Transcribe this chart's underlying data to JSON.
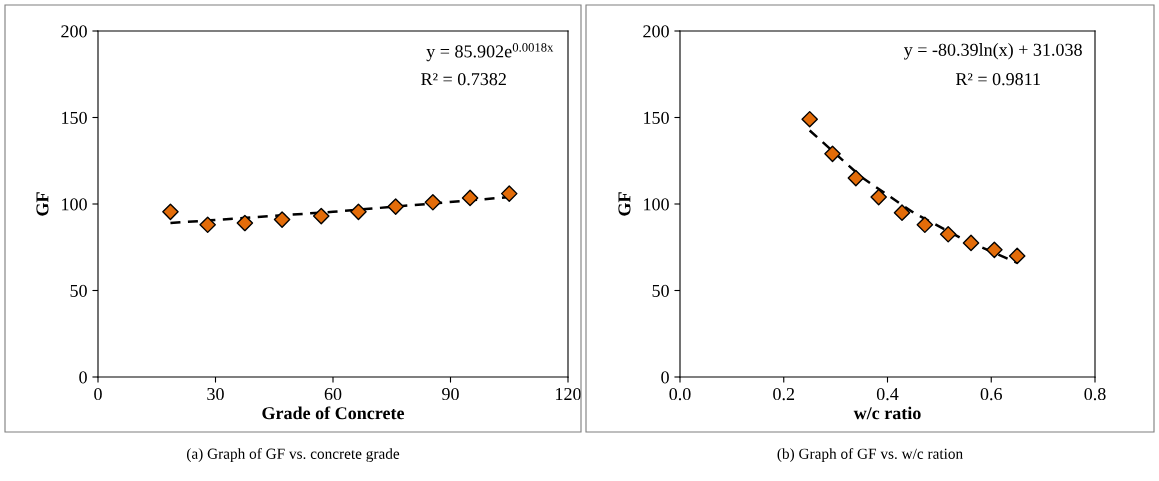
{
  "chart_data": [
    {
      "type": "scatter",
      "xlabel": "Grade of Concrete",
      "ylabel": "GF",
      "xlim": [
        0,
        120
      ],
      "ylim": [
        0,
        200
      ],
      "xticks": [
        0,
        30,
        60,
        90,
        120
      ],
      "yticks": [
        0,
        50,
        100,
        150,
        200
      ],
      "marker": "diamond",
      "grid": false,
      "legend": false,
      "series": [
        {
          "color": "#e36c09",
          "x": [
            18.5,
            28,
            37.5,
            47,
            57,
            66.5,
            76,
            85.5,
            95,
            105
          ],
          "values": [
            95.5,
            88,
            89,
            91,
            93,
            95.5,
            98.5,
            101,
            103.5,
            106
          ]
        },
        {
          "type": "line",
          "line_style": "dashed",
          "marker": "none",
          "color": "#000000",
          "x": [
            18.5,
            60,
            105
          ],
          "values": [
            89,
            95.5,
            104
          ]
        }
      ],
      "annotations": [
        "y = 85.902e$^{0.0018x}$",
        "R² = 0.7382",
        "(a) Graph of GF vs. concrete grade"
      ]
    },
    {
      "type": "scatter",
      "xlabel": "w/c ratio",
      "ylabel": "GF",
      "xlim": [
        0,
        0.8
      ],
      "ylim": [
        0,
        200
      ],
      "xticks": [
        {
          "value": 0,
          "label": "0.0"
        },
        {
          "value": 0.2,
          "label": "0.2"
        },
        {
          "value": 0.4,
          "label": "0.4"
        },
        {
          "value": 0.6,
          "label": "0.6"
        },
        {
          "value": 0.8,
          "label": "0.8"
        }
      ],
      "yticks": [
        0,
        50,
        100,
        150,
        200
      ],
      "marker": "diamond",
      "grid": false,
      "legend": false,
      "series": [
        {
          "color": "#e36c09",
          "x": [
            0.25,
            0.294,
            0.339,
            0.383,
            0.428,
            0.472,
            0.517,
            0.561,
            0.606,
            0.65
          ],
          "values": [
            149,
            129,
            115,
            104,
            95,
            88,
            82.5,
            77.5,
            73.5,
            70
          ]
        },
        {
          "type": "line",
          "line_style": "dashed",
          "marker": "none",
          "color": "#000000",
          "x": [
            0.25,
            0.35,
            0.45,
            0.55,
            0.65
          ],
          "values": [
            142.5,
            115.5,
            95,
            79,
            66
          ]
        }
      ],
      "annotations": [
        "y = -80.39ln(x) + 31.038",
        "R² = 0.9811",
        "(b) Graph of GF vs. w/c ration"
      ]
    }
  ]
}
